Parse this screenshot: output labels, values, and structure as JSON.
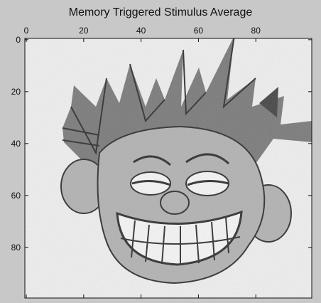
{
  "figure": {
    "background_color": "#c8c8c8"
  },
  "chart_data": {
    "type": "heatmap",
    "title": "Memory Triggered Stimulus Average",
    "xlabel": "",
    "ylabel": "",
    "xlim": [
      -0.5,
      99.5
    ],
    "ylim": [
      99.5,
      -0.5
    ],
    "x_ticks": [
      0,
      20,
      40,
      60,
      80
    ],
    "y_ticks": [
      0,
      20,
      40,
      60,
      80
    ],
    "x_axis_position": "top",
    "colormap": "gray",
    "grid": false,
    "content": "grayscale cartoon face with spiky hair and clenched teeth on a light noisy background",
    "colors": {
      "background": "#efefef",
      "hair": "#7a7a7a",
      "hair_dark": "#454545",
      "skin": "#b2b2b2",
      "outline": "#303030",
      "teeth": "#f5f5f5"
    }
  }
}
